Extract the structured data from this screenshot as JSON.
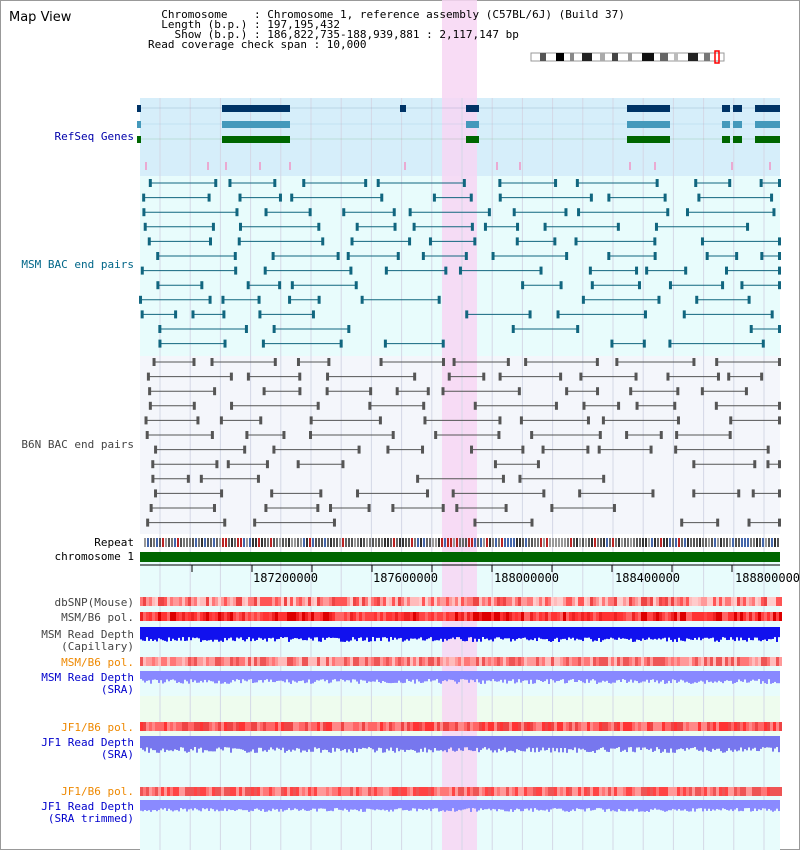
{
  "title": "Map View",
  "info": {
    "line1": "  Chromosome    : Chromosome 1, reference assembly (C57BL/6J) (Build 37)",
    "line2": "  Length (b.p.) : 197,195,432",
    "line3": "    Show (b.p.) : 186,822,735-188,939,881 : 2,117,147 bp",
    "line4": "Read coverage check span : 10,000"
  },
  "tracks": {
    "refseq": "RefSeq Genes",
    "msm_bac": "MSM BAC end pairs",
    "b6n_bac": "B6N BAC end pairs",
    "repeat": "Repeat",
    "chrom": "chromosome 1",
    "dbsnp": "dbSNP(Mouse)",
    "msm_b6_pol": "MSM/B6 pol.",
    "msm_depth_cap_1": "MSM Read Depth",
    "msm_depth_cap_2": "(Capillary)",
    "msm_b6_pol_sra": "MSM/B6 pol.",
    "msm_depth_sra_1": "MSM Read Depth",
    "msm_depth_sra_2": "(SRA)",
    "jf1_b6_pol": "JF1/B6 pol.",
    "jf1_depth_sra_1": "JF1 Read Depth",
    "jf1_depth_sra_2": "(SRA)",
    "jf1_b6_pol_trim": "JF1/B6 pol.",
    "jf1_depth_trim_1": "JF1 Read Depth",
    "jf1_depth_trim_2": "(SRA trimmed)"
  },
  "axis_ticks": [
    "187200000",
    "187600000",
    "188000000",
    "188400000",
    "188800000"
  ],
  "colors": {
    "refseq_label": "#0000aa",
    "msm_label": "#006688",
    "b6n_label": "#444444",
    "orange_label": "#ee8800",
    "blue_label": "#0000cc",
    "highlight": "#f7d6f3",
    "refseq_bg": "#d6eefa",
    "track_bg": "#e8fcfc",
    "chrom_green": "#006600"
  }
}
